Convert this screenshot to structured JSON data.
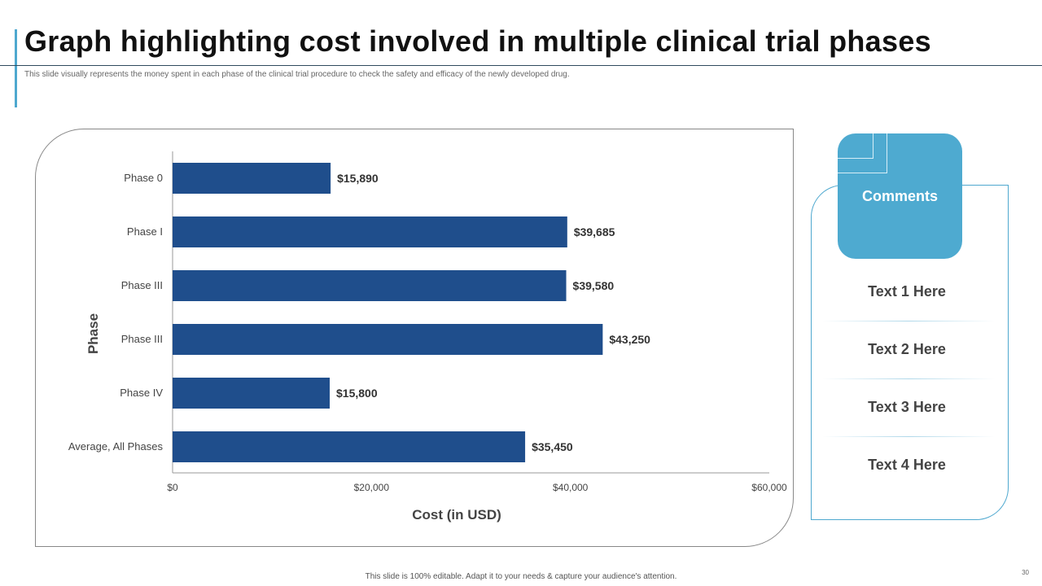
{
  "slide": {
    "title": "Graph highlighting cost involved in multiple clinical trial phases",
    "subtitle": "This slide visually represents the money spent in each phase of the clinical trial procedure to check the safety and efficacy of the newly developed drug.",
    "footer": "This slide is 100% editable. Adapt it to your needs & capture your audience's attention.",
    "page_number": "30"
  },
  "comments": {
    "header": "Comments",
    "items": [
      "Text 1 Here",
      "Text 2 Here",
      "Text 3 Here",
      "Text 4 Here"
    ]
  },
  "colors": {
    "bar": "#1f4e8c",
    "accent": "#4eaad0"
  },
  "chart_data": {
    "type": "bar",
    "orientation": "horizontal",
    "categories": [
      "Phase 0",
      "Phase I",
      "Phase III",
      "Phase III",
      "Phase IV",
      "Average, All Phases"
    ],
    "values": [
      15890,
      39685,
      39580,
      43250,
      15800,
      35450
    ],
    "value_labels": [
      "$15,890",
      "$39,685",
      "$39,580",
      "$43,250",
      "$15,800",
      "$35,450"
    ],
    "xlim": [
      0,
      60000
    ],
    "xticks": [
      0,
      20000,
      40000,
      60000
    ],
    "xtick_labels": [
      "$0",
      "$20,000",
      "$40,000",
      "$60,000"
    ],
    "xlabel": "Cost (in USD)",
    "ylabel": "Phase",
    "grid": false
  }
}
